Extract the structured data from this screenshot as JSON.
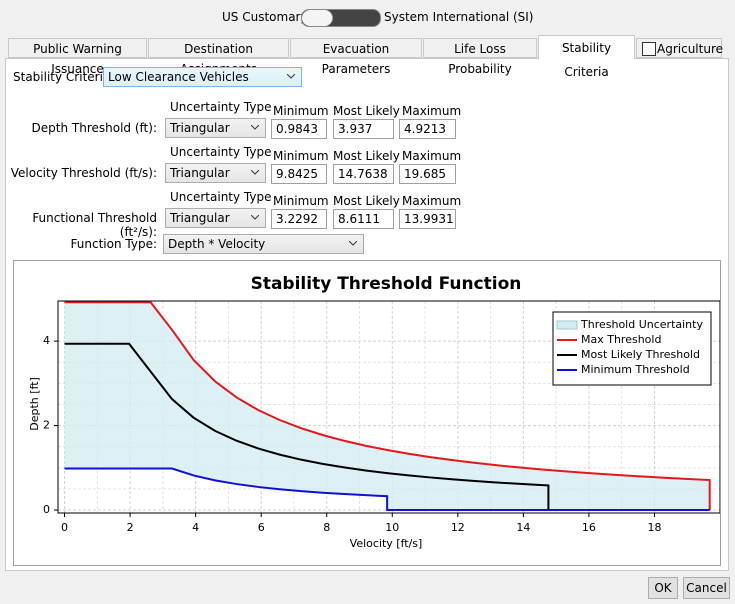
{
  "units": {
    "left": "US Customary",
    "right": "System International (SI)"
  },
  "tabs": [
    "Public Warning Issuance",
    "Destination Assignments",
    "Evacuation Parameters",
    "Life Loss Probability",
    "Stability Criteria",
    "Agriculture"
  ],
  "form": {
    "criteria_label": "Stability Criteria:",
    "criteria_value": "Low Clearance Vehicles",
    "headers": {
      "uncertainty_type": "Uncertainty Type",
      "minimum": "Minimum",
      "most_likely": "Most Likely",
      "maximum": "Maximum"
    },
    "rows": [
      {
        "label": "Depth Threshold (ft):",
        "uncertainty_type": "Triangular",
        "minimum": 0.9843,
        "most_likely": 3.937,
        "maximum": 4.9213
      },
      {
        "label": "Velocity Threshold (ft/s):",
        "uncertainty_type": "Triangular",
        "minimum": 9.8425,
        "most_likely": 14.7638,
        "maximum": 19.685
      },
      {
        "label": "Functional Threshold (ft²/s):",
        "uncertainty_type": "Triangular",
        "minimum": 3.2292,
        "most_likely": 8.6111,
        "maximum": 13.9931
      }
    ],
    "function_type_label": "Function Type:",
    "function_type_value": "Depth * Velocity"
  },
  "chart_data": {
    "type": "line",
    "title": "Stability Threshold Function",
    "x_label": "Velocity [ft/s]",
    "y_label": "Depth [ft]",
    "xlim": [
      -0.2,
      20
    ],
    "ylim": [
      -0.07,
      4.95
    ],
    "xticks": [
      0,
      2,
      4,
      6,
      8,
      10,
      12,
      14,
      16,
      18
    ],
    "yticks": [
      0,
      2,
      4
    ],
    "grid": true,
    "minor_grid": true,
    "legend": "top-right",
    "series": [
      {
        "name": "Threshold Uncertainty",
        "color": "#d4ecf1",
        "type": "area"
      },
      {
        "name": "Max Threshold",
        "color": "#e8151b",
        "x": [
          0,
          2.625,
          3.281,
          3.937,
          4.593,
          5.249,
          5.906,
          6.562,
          7.218,
          7.874,
          8.53,
          9.186,
          9.843,
          10.499,
          11.155,
          11.811,
          12.467,
          13.123,
          13.78,
          14.436,
          15.092,
          15.748,
          16.404,
          17.061,
          17.717,
          18.373,
          19.029,
          19.685,
          19.685
        ],
        "values": [
          4.921,
          4.921,
          4.265,
          3.554,
          3.047,
          2.666,
          2.369,
          2.132,
          1.939,
          1.777,
          1.64,
          1.523,
          1.422,
          1.333,
          1.254,
          1.185,
          1.122,
          1.066,
          1.015,
          0.969,
          0.927,
          0.889,
          0.853,
          0.82,
          0.79,
          0.762,
          0.735,
          0.711,
          0
        ]
      },
      {
        "name": "Most Likely Threshold",
        "color": "#000000",
        "x": [
          0,
          1.969,
          2.625,
          3.281,
          3.937,
          4.593,
          5.249,
          5.906,
          6.562,
          7.218,
          7.874,
          8.53,
          9.186,
          9.843,
          10.499,
          11.155,
          11.811,
          12.467,
          13.123,
          13.78,
          14.436,
          14.764,
          14.764
        ],
        "values": [
          3.937,
          3.937,
          3.28,
          2.625,
          2.187,
          1.875,
          1.641,
          1.458,
          1.312,
          1.193,
          1.094,
          1.01,
          0.937,
          0.875,
          0.82,
          0.772,
          0.729,
          0.691,
          0.656,
          0.625,
          0.597,
          0.583,
          0
        ]
      },
      {
        "name": "Minimum Threshold",
        "color": "#1010d8",
        "x": [
          0,
          3.281,
          3.937,
          4.593,
          5.249,
          5.906,
          6.562,
          7.218,
          7.874,
          8.53,
          9.186,
          9.843,
          9.843,
          19.685
        ],
        "values": [
          0.984,
          0.984,
          0.82,
          0.703,
          0.615,
          0.547,
          0.492,
          0.447,
          0.41,
          0.379,
          0.352,
          0.328,
          0,
          0
        ]
      }
    ]
  },
  "buttons": [
    "OK",
    "Cancel"
  ]
}
